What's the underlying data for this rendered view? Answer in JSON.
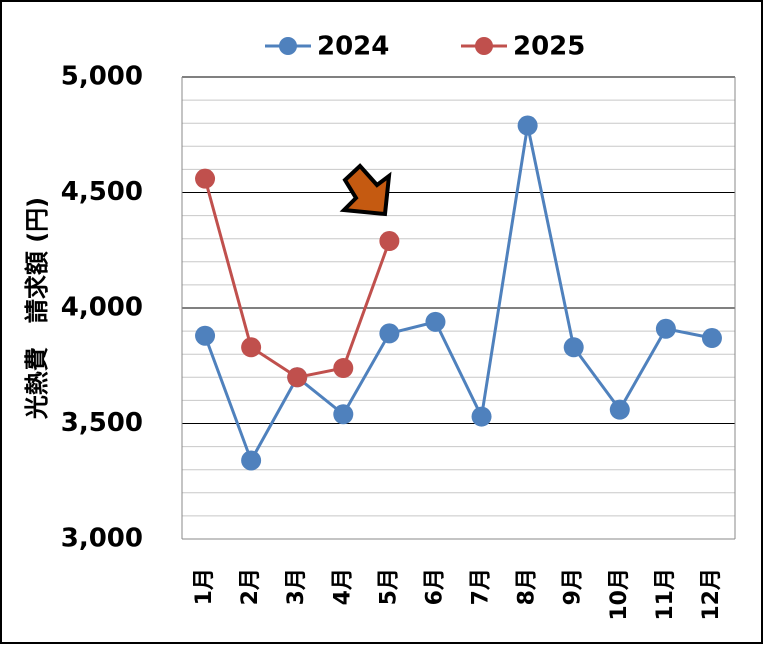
{
  "chart_data": {
    "type": "line",
    "y_label": "光熱費　請求額 (円)",
    "categories": [
      "1月",
      "2月",
      "3月",
      "4月",
      "5月",
      "6月",
      "7月",
      "8月",
      "9月",
      "10月",
      "11月",
      "12月"
    ],
    "series": [
      {
        "name": "2024",
        "color": "#4f81bd",
        "values": [
          3880,
          3340,
          3700,
          3540,
          3890,
          3940,
          3530,
          4790,
          3830,
          3560,
          3910,
          3870
        ]
      },
      {
        "name": "2025",
        "color": "#c0504d",
        "values": [
          4560,
          3830,
          3700,
          3740,
          4290,
          null,
          null,
          null,
          null,
          null,
          null,
          null
        ]
      }
    ],
    "ylim": [
      3000,
      5000
    ],
    "yticks": [
      {
        "value": 3000,
        "label": "3,000"
      },
      {
        "value": 3500,
        "label": "3,500"
      },
      {
        "value": 4000,
        "label": "4,000"
      },
      {
        "value": 4500,
        "label": "4,500"
      },
      {
        "value": 5000,
        "label": "5,000"
      }
    ],
    "minor_yticks": [
      3100,
      3200,
      3300,
      3400,
      3600,
      3700,
      3800,
      3900,
      4100,
      4200,
      4300,
      4400,
      4600,
      4700,
      4800,
      4900
    ],
    "grid": true,
    "legend": "top"
  }
}
